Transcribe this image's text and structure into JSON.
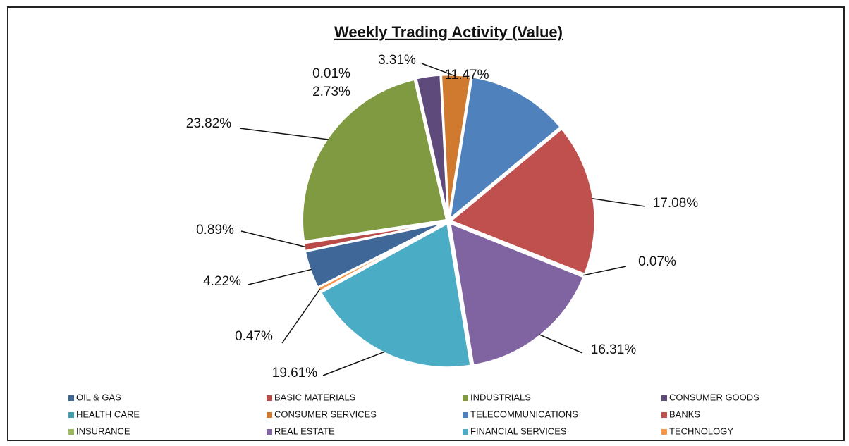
{
  "chart_data": {
    "type": "pie",
    "title": "Weekly Trading Activity (Value)",
    "categories": [
      "OIL & GAS",
      "BASIC MATERIALS",
      "INDUSTRIALS",
      "CONSUMER GOODS",
      "HEALTH CARE",
      "CONSUMER SERVICES",
      "TELECOMMUNICATIONS",
      "BANKS",
      "INSURANCE",
      "REAL ESTATE",
      "FINANCIAL SERVICES",
      "TECHNOLOGY"
    ],
    "values": [
      4.22,
      0.89,
      23.82,
      2.73,
      0.01,
      3.31,
      11.47,
      17.08,
      0.07,
      16.31,
      19.61,
      0.47
    ],
    "value_labels": [
      "4.22%",
      "0.89%",
      "23.82%",
      "2.73%",
      "0.01%",
      "3.31%",
      "11.47%",
      "17.08%",
      "0.07%",
      "16.31%",
      "19.61%",
      "0.47%"
    ],
    "colors": [
      "#3f6797",
      "#b94a48",
      "#7f9a41",
      "#5f4a7c",
      "#3f9fb0",
      "#d07a2f",
      "#4f81bd",
      "#c0504d",
      "#9bbb59",
      "#8064a2",
      "#4bacc6",
      "#f79646"
    ],
    "legend": "bottom"
  }
}
